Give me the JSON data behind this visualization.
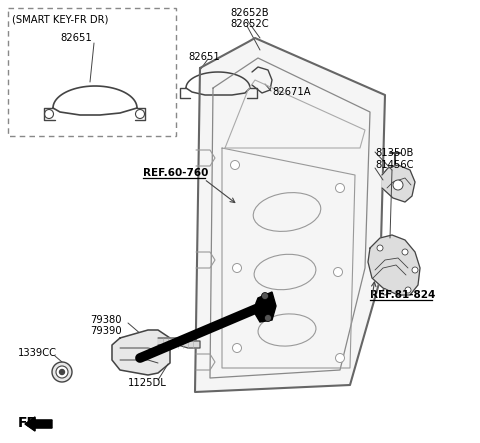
{
  "background_color": "#ffffff",
  "fig_width": 4.8,
  "fig_height": 4.43,
  "dpi": 100,
  "labels": {
    "smart_key_box_title": "(SMART KEY-FR DR)",
    "smart_key_box_part": "82651",
    "handle_top_b": "82652B",
    "handle_top_c": "82652C",
    "handle_mid_part": "82651",
    "handle_keyhole": "82671A",
    "ref_60_760": "REF.60-760",
    "ref_81_824": "REF.81-824",
    "part_81350B": "81350B",
    "part_81456C": "81456C",
    "part_79380": "79380",
    "part_79390": "79390",
    "part_1339CC": "1339CC",
    "part_1125DL": "1125DL",
    "fr_label": "FR."
  },
  "colors": {
    "line": "#444444",
    "dashed": "#666666",
    "text": "#000000",
    "black_fill": "#000000",
    "door": "#666666",
    "detail": "#888888"
  }
}
